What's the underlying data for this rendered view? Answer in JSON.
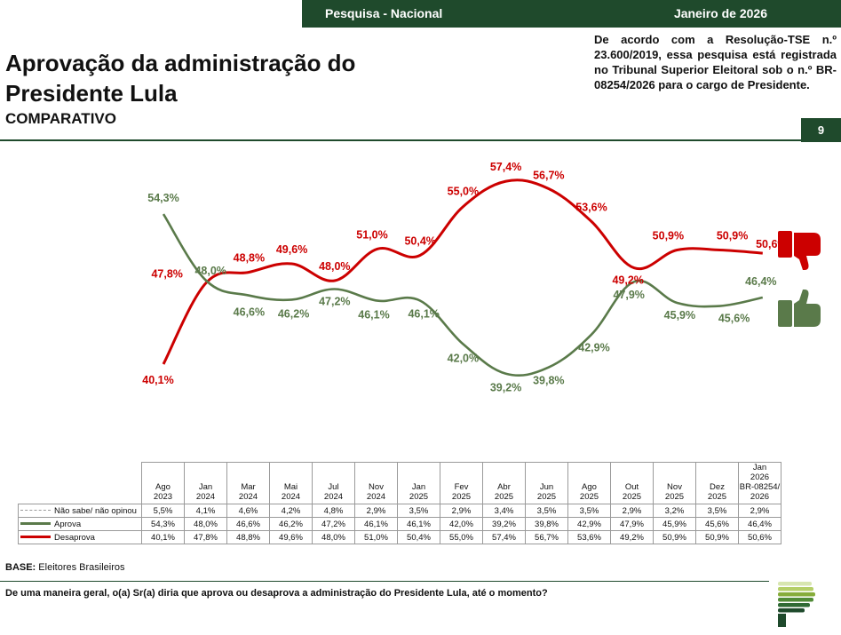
{
  "header": {
    "banner_left": "Pesquisa - Nacional",
    "banner_right": "Janeiro de 2026",
    "registration_note": "De acordo com a Resolução-TSE n.º 23.600/2019, essa pesquisa está registrada no Tribunal Superior Eleitoral sob o n.º BR-08254/2026 para o cargo de Presidente.",
    "page_number": "9"
  },
  "colors": {
    "brand_green": "#1f4a2c",
    "aprova": "#5a7a4a",
    "desaprova": "#cc0000",
    "nao_sabe": "#9a9a9a",
    "logo_stripes": [
      "#d8e6b0",
      "#b5cf68",
      "#86ac3a",
      "#4f8a36",
      "#2f6a34",
      "#1f4a2c"
    ]
  },
  "icons": {
    "desaprova_icon": "thumbs-down-icon",
    "aprova_icon": "thumbs-up-icon",
    "logo": "logo-stripes-icon"
  },
  "chart_data": {
    "type": "line",
    "title": "Aprovação da administração do Presidente Lula",
    "subtitle": "COMPARATIVO",
    "categories_top": [
      "Ago",
      "Jan",
      "Mar",
      "Mai",
      "Jul",
      "Nov",
      "Jan",
      "Fev",
      "Abr",
      "Jun",
      "Ago",
      "Out",
      "Nov",
      "Dez",
      "Jan"
    ],
    "categories_bottom": [
      "2023",
      "2024",
      "2024",
      "2024",
      "2024",
      "2024",
      "2025",
      "2025",
      "2025",
      "2025",
      "2025",
      "2025",
      "2025",
      "2025",
      "2026"
    ],
    "last_category_extra": [
      "BR-08254/",
      "2026"
    ],
    "ylim": [
      38,
      58
    ],
    "grid": false,
    "series": [
      {
        "name": "Não sabe/ não opinou",
        "values": [
          5.5,
          4.1,
          4.6,
          4.2,
          4.8,
          2.9,
          3.5,
          2.9,
          3.4,
          3.5,
          3.5,
          2.9,
          3.2,
          3.5,
          2.9
        ],
        "labels": [
          "5,5%",
          "4,1%",
          "4,6%",
          "4,2%",
          "4,8%",
          "2,9%",
          "3,5%",
          "2,9%",
          "3,4%",
          "3,5%",
          "3,5%",
          "2,9%",
          "3,2%",
          "3,5%",
          "2,9%"
        ],
        "plotted": false
      },
      {
        "name": "Aprova",
        "values": [
          54.3,
          48.0,
          46.6,
          46.2,
          47.2,
          46.1,
          46.1,
          42.0,
          39.2,
          39.8,
          42.9,
          47.9,
          45.9,
          45.6,
          46.4
        ],
        "labels": [
          "54,3%",
          "48,0%",
          "46,6%",
          "46,2%",
          "47,2%",
          "46,1%",
          "46,1%",
          "42,0%",
          "39,2%",
          "39,8%",
          "42,9%",
          "47,9%",
          "45,9%",
          "45,6%",
          "46,4%"
        ],
        "plotted": true
      },
      {
        "name": "Desaprova",
        "values": [
          40.1,
          47.8,
          48.8,
          49.6,
          48.0,
          51.0,
          50.4,
          55.0,
          57.4,
          56.7,
          53.6,
          49.2,
          50.9,
          50.9,
          50.6
        ],
        "labels": [
          "40,1%",
          "47,8%",
          "48,8%",
          "49,6%",
          "48,0%",
          "51,0%",
          "50,4%",
          "55,0%",
          "57,4%",
          "56,7%",
          "53,6%",
          "49,2%",
          "50,9%",
          "50,9%",
          "50,6%"
        ],
        "plotted": true
      }
    ]
  },
  "footer": {
    "base_label": "BASE:",
    "base_text": "Eleitores Brasileiros",
    "question": "De uma maneira geral, o(a) Sr(a) diria que aprova ou desaprova a administração do Presidente Lula, até o momento?"
  }
}
